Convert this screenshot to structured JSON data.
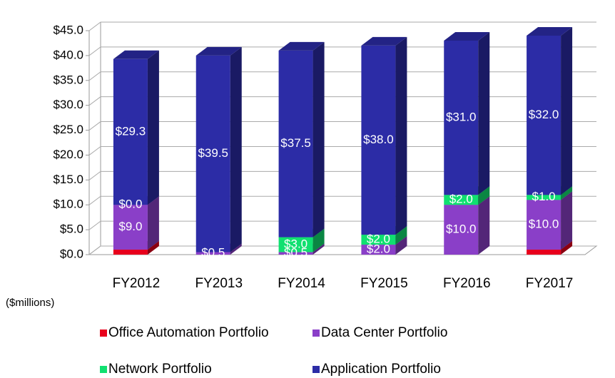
{
  "chart_data": {
    "type": "bar3d_stacked",
    "axis_label": "($millions)",
    "categories": [
      "FY2012",
      "FY2013",
      "FY2014",
      "FY2015",
      "FY2016",
      "FY2017"
    ],
    "series": [
      {
        "name": "Office Automation Portfolio",
        "color": "#e8001c",
        "values": [
          1.0,
          0,
          0,
          0,
          0,
          1.0
        ],
        "value_labels": [
          null,
          null,
          null,
          null,
          null,
          null
        ]
      },
      {
        "name": "Data Center Portfolio",
        "color": "#8a3fc8",
        "values": [
          9.0,
          0.5,
          0.5,
          2.0,
          10.0,
          10.0
        ],
        "value_labels": [
          "$9.0",
          "$0.5",
          "$0.5",
          "$2.0",
          "$10.0",
          "$10.0"
        ]
      },
      {
        "name": "Network Portfolio",
        "color": "#10e070",
        "values": [
          0.0,
          0,
          3.0,
          2.0,
          2.0,
          1.0
        ],
        "value_labels": [
          "$0.0",
          null,
          "$3.0",
          "$2.0",
          "$2.0",
          "$1.0"
        ]
      },
      {
        "name": "Application Portfolio",
        "color": "#2c2ca6",
        "values": [
          29.3,
          39.5,
          37.5,
          38.0,
          31.0,
          32.0
        ],
        "value_labels": [
          "$29.3",
          "$39.5",
          "$37.5",
          "$38.0",
          "$31.0",
          "$32.0"
        ]
      }
    ],
    "ylim": [
      0,
      45
    ],
    "yticks": [
      {
        "value": 0,
        "label": "$0.0"
      },
      {
        "value": 5,
        "label": "$5.0"
      },
      {
        "value": 10,
        "label": "$10.0"
      },
      {
        "value": 15,
        "label": "$15.0"
      },
      {
        "value": 20,
        "label": "$20.0"
      },
      {
        "value": 25,
        "label": "$25.0"
      },
      {
        "value": 30,
        "label": "$30.0"
      },
      {
        "value": 35,
        "label": "$35.0"
      },
      {
        "value": 40,
        "label": "$40.0"
      },
      {
        "value": 45,
        "label": "$45.0"
      }
    ],
    "grid": true
  }
}
